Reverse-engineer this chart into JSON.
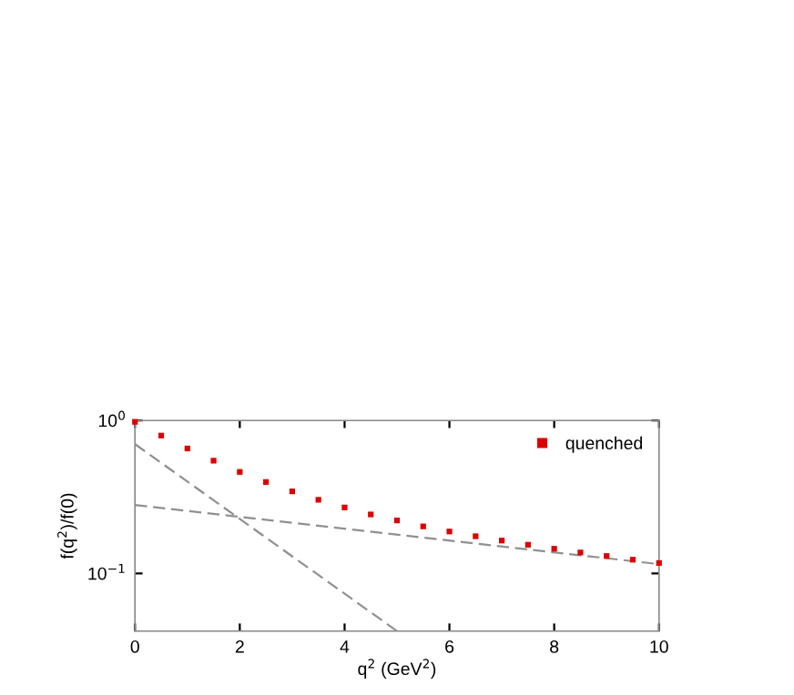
{
  "chart_data": {
    "type": "scatter",
    "xlabel": "q$^{2}$ (GeV$^{2}$)",
    "ylabel": "f(q$^{2}$)/f(0)",
    "log": "y",
    "xlim": [
      0,
      10
    ],
    "xticks": [
      0,
      2,
      4,
      6,
      8,
      10
    ],
    "ylim": [
      0.042,
      1
    ],
    "yticks": [
      {
        "value": 1,
        "label": "10$^{0}$"
      },
      {
        "value": 0.1,
        "label": "10$^{−1}$"
      }
    ],
    "legend": "top right",
    "grid": false,
    "series": [
      {
        "name": "quenched",
        "color": "#dd0000",
        "marker": "square",
        "x": [
          0,
          0.5,
          1,
          1.5,
          2,
          2.5,
          3,
          3.5,
          4,
          4.5,
          5,
          5.5,
          6,
          6.5,
          7,
          7.5,
          8,
          8.5,
          9,
          9.5,
          10
        ],
        "values": [
          0.98,
          0.797,
          0.656,
          0.546,
          0.461,
          0.396,
          0.344,
          0.303,
          0.27,
          0.243,
          0.222,
          0.203,
          0.188,
          0.175,
          0.164,
          0.154,
          0.145,
          0.137,
          0.13,
          0.123,
          0.117
        ]
      },
      {
        "type": "line",
        "color": "#909090",
        "line_style": "dashed",
        "x": [
          0,
          5
        ],
        "values": [
          0.7,
          0.042
        ]
      },
      {
        "type": "line",
        "color": "#909090",
        "line_style": "dashed",
        "x": [
          0,
          10
        ],
        "values": [
          0.28,
          0.115
        ]
      }
    ]
  }
}
